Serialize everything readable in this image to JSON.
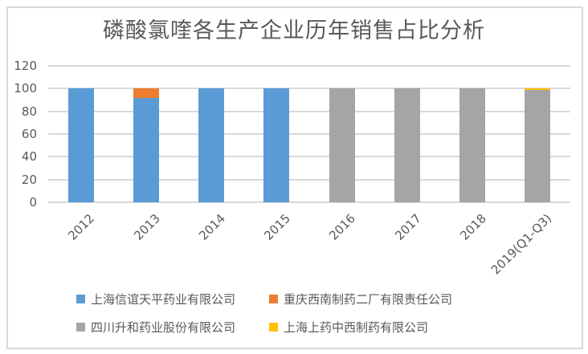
{
  "chart_data": {
    "type": "bar",
    "stacked": true,
    "title": "磷酸氯喹各生产企业历年销售占比分析",
    "categories": [
      "2012",
      "2013",
      "2014",
      "2015",
      "2016",
      "2017",
      "2018",
      "2019(Q1-Q3)"
    ],
    "series": [
      {
        "name": "上海信谊天平药业有限公司",
        "color": "#5B9BD5",
        "values": [
          100,
          92,
          100,
          100,
          0,
          0,
          0,
          0
        ]
      },
      {
        "name": "重庆西南制药二厂有限责任公司",
        "color": "#ED7D31",
        "values": [
          0,
          8,
          0,
          0,
          0,
          0,
          0,
          0
        ]
      },
      {
        "name": "四川升和药业股份有限公司",
        "color": "#A5A5A5",
        "values": [
          0,
          0,
          0,
          0,
          100,
          100,
          100,
          99
        ]
      },
      {
        "name": "上海上药中西制药有限公司",
        "color": "#FFC000",
        "values": [
          0,
          0,
          0,
          0,
          0,
          0,
          0,
          1
        ]
      }
    ],
    "ylim": [
      0,
      120
    ],
    "yticks": [
      0,
      20,
      40,
      60,
      80,
      100,
      120
    ],
    "grid": true,
    "legend_position": "bottom",
    "colors": {
      "gridline": "#D9D9D9",
      "frame_border": "#D9D9D9",
      "axis_text": "#595959",
      "title_text": "#595959",
      "background": "#FFFFFF"
    }
  }
}
